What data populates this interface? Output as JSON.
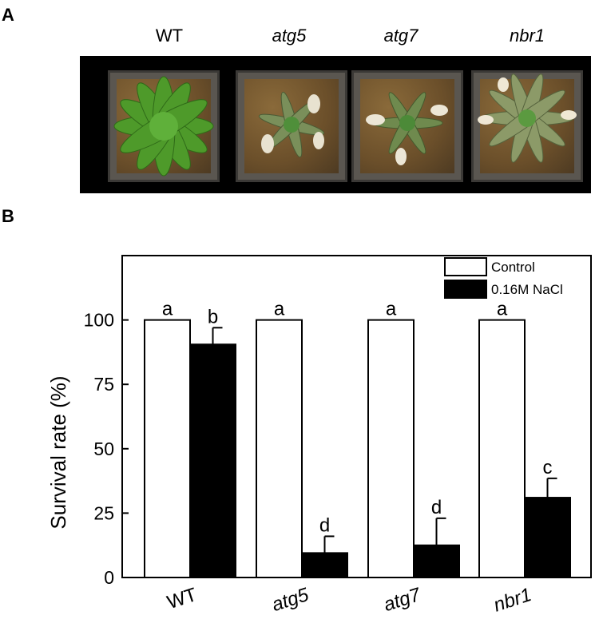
{
  "panels": {
    "a_label": "A",
    "b_label": "B"
  },
  "photo": {
    "labels": [
      {
        "text": "WT",
        "italic": false
      },
      {
        "text": "atg5",
        "italic": true
      },
      {
        "text": "atg7",
        "italic": true
      },
      {
        "text": "nbr1",
        "italic": true
      }
    ]
  },
  "chart_data": {
    "type": "bar",
    "categories": [
      "WT",
      "atg5",
      "atg7",
      "nbr1"
    ],
    "categories_italic": [
      false,
      true,
      true,
      true
    ],
    "series": [
      {
        "name": "Control",
        "values": [
          100,
          100,
          100,
          100
        ],
        "errors": [
          0,
          0,
          0,
          0
        ],
        "color": "#ffffff",
        "letters": [
          "a",
          "a",
          "a",
          "a"
        ]
      },
      {
        "name": "0.16M NaCl",
        "values": [
          90.5,
          9.5,
          12.5,
          31
        ],
        "errors": [
          6.5,
          6.5,
          10.5,
          7.5
        ],
        "color": "#000000",
        "letters": [
          "b",
          "d",
          "d",
          "c"
        ]
      }
    ],
    "ylabel": "Survival rate (%)",
    "ylim": [
      0,
      125
    ],
    "yticks": [
      0,
      25,
      50,
      75,
      100
    ],
    "legend_position": "top-right"
  }
}
